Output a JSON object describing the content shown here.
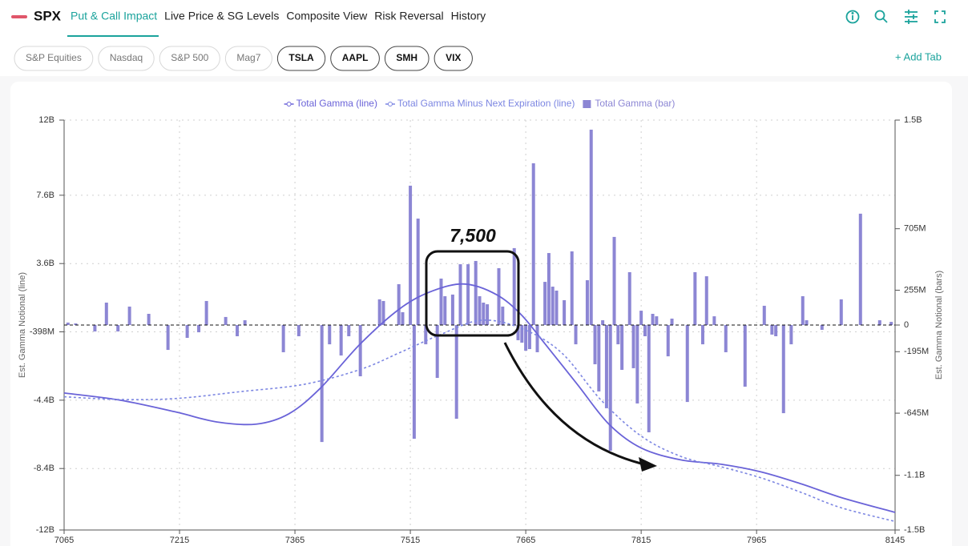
{
  "header": {
    "brand": "SPX",
    "tabs": [
      "Put & Call Impact",
      "Live Price & SG Levels",
      "Composite View",
      "Risk Reversal",
      "History"
    ]
  },
  "filters": [
    "S&P Equities",
    "Nasdaq",
    "S&P 500",
    "Mag7",
    "TSLA",
    "AAPL",
    "SMH",
    "VIX"
  ],
  "add_tab": "+ Add Tab",
  "chart_data": {
    "type": "combo",
    "annotation": "7,500",
    "y_label": "Est. Gamma Notional (line)",
    "y2_label": "Est. Gamma Notional (bars)",
    "xlim": [
      7065,
      8145
    ],
    "xticks": [
      7065,
      7215,
      7365,
      7515,
      7665,
      7815,
      7965,
      8145
    ],
    "ylim": [
      -12000000000,
      12000000000
    ],
    "yticks": [
      {
        "value": 12000000000,
        "label": "12B"
      },
      {
        "value": 7600000000,
        "label": "7.6B"
      },
      {
        "value": 3600000000,
        "label": "3.6B"
      },
      {
        "value": -398000000,
        "label": "-398M"
      },
      {
        "value": -4400000000,
        "label": "-4.4B"
      },
      {
        "value": -8400000000,
        "label": "-8.4B"
      },
      {
        "value": -12000000000,
        "label": "-12B"
      }
    ],
    "y2lim": [
      -1500000000,
      1500000000
    ],
    "y2ticks": [
      {
        "value": 1500000000,
        "label": "1.5B"
      },
      {
        "value": 705000000,
        "label": "705M"
      },
      {
        "value": 255000000,
        "label": "255M"
      },
      0,
      {
        "value": -195000000,
        "label": "-195M"
      },
      {
        "value": -645000000,
        "label": "-645M"
      },
      {
        "value": -1100000000,
        "label": "-1.1B"
      },
      {
        "value": -1500000000,
        "label": "-1.5B"
      }
    ],
    "grid": true,
    "series": [
      {
        "name": "Total Gamma (line)",
        "type": "line",
        "color": "#6a63d8",
        "dashed": false,
        "x": [
          7065,
          7138,
          7211,
          7263,
          7315,
          7357,
          7398,
          7450,
          7502,
          7544,
          7586,
          7627,
          7659,
          7690,
          7732,
          7773,
          7815,
          7867,
          7919,
          7971,
          8023,
          8075,
          8145
        ],
        "values": [
          -3980000000,
          -4400000000,
          -5100000000,
          -5670000000,
          -5800000000,
          -5200000000,
          -3700000000,
          -1100000000,
          980000000,
          2000000000,
          2400000000,
          1780000000,
          610000000,
          -1100000000,
          -3470000000,
          -5800000000,
          -7200000000,
          -7900000000,
          -8150000000,
          -8600000000,
          -9300000000,
          -10100000000,
          -10970000000
        ]
      },
      {
        "name": "Total Gamma Minus Next Expiration (line)",
        "type": "line",
        "color": "#7c86e2",
        "dashed": true,
        "x": [
          7065,
          7138,
          7211,
          7294,
          7377,
          7450,
          7502,
          7554,
          7607,
          7659,
          7711,
          7763,
          7815,
          7867,
          7919,
          7971,
          8023,
          8075,
          8145
        ],
        "values": [
          -4200000000,
          -4360000000,
          -4300000000,
          -3900000000,
          -3470000000,
          -2600000000,
          -1600000000,
          -560000000,
          280000000,
          -190000000,
          -1600000000,
          -4400000000,
          -6500000000,
          -7700000000,
          -8300000000,
          -8950000000,
          -9800000000,
          -10700000000,
          -11500000000
        ]
      },
      {
        "name": "Total Gamma (bar)",
        "type": "bar",
        "axis": "y2",
        "color": "#8c86d4",
        "x": [
          7070,
          7080,
          7105,
          7120,
          7135,
          7150,
          7175,
          7200,
          7225,
          7240,
          7250,
          7275,
          7290,
          7300,
          7350,
          7370,
          7400,
          7410,
          7425,
          7435,
          7450,
          7475,
          7480,
          7500,
          7505,
          7515,
          7520,
          7525,
          7535,
          7550,
          7555,
          7560,
          7570,
          7575,
          7580,
          7590,
          7600,
          7605,
          7610,
          7615,
          7630,
          7635,
          7650,
          7655,
          7660,
          7665,
          7670,
          7675,
          7680,
          7690,
          7695,
          7700,
          7705,
          7715,
          7725,
          7730,
          7745,
          7750,
          7755,
          7760,
          7765,
          7770,
          7775,
          7780,
          7785,
          7790,
          7800,
          7805,
          7810,
          7815,
          7820,
          7825,
          7830,
          7835,
          7850,
          7855,
          7875,
          7885,
          7895,
          7900,
          7910,
          7925,
          7950,
          7975,
          7985,
          7990,
          8000,
          8010,
          8025,
          8030,
          8050,
          8075,
          8100,
          8125,
          8140
        ],
        "values": [
          18000000,
          12000000,
          -47000000,
          164000000,
          -47000000,
          135000000,
          82000000,
          -182000000,
          -94000000,
          -53000000,
          176000000,
          59000000,
          -82000000,
          35000000,
          -199000000,
          -82000000,
          -856000000,
          -141000000,
          -223000000,
          -82000000,
          -375000000,
          188000000,
          176000000,
          299000000,
          94000000,
          1020000000,
          -832000000,
          779000000,
          -141000000,
          -387000000,
          340000000,
          211000000,
          223000000,
          -686000000,
          445000000,
          445000000,
          469000000,
          211000000,
          164000000,
          152000000,
          416000000,
          135000000,
          563000000,
          -111000000,
          -129000000,
          -188000000,
          -176000000,
          1184000000,
          -199000000,
          316000000,
          527000000,
          281000000,
          252000000,
          182000000,
          539000000,
          -141000000,
          328000000,
          1430000000,
          -287000000,
          -486000000,
          35000000,
          -609000000,
          -920000000,
          645000000,
          -141000000,
          -328000000,
          387000000,
          -316000000,
          -574000000,
          105000000,
          -82000000,
          -785000000,
          82000000,
          64000000,
          -229000000,
          47000000,
          -563000000,
          387000000,
          -141000000,
          357000000,
          64000000,
          -199000000,
          -451000000,
          141000000,
          -70000000,
          -82000000,
          -645000000,
          -141000000,
          211000000,
          35000000,
          -35000000,
          188000000,
          815000000,
          35000000,
          23000000
        ]
      }
    ]
  }
}
